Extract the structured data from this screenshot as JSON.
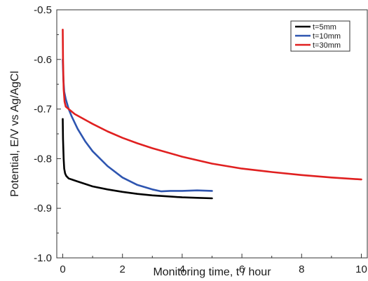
{
  "chart_data": {
    "type": "line",
    "title": "",
    "xlabel": "Monitoring time, t / hour",
    "ylabel": "Potential, E/V vs Ag/AgCl",
    "xlim": [
      -0.2,
      10.2
    ],
    "ylim": [
      -1.0,
      -0.5
    ],
    "x_ticks": [
      0,
      2,
      4,
      6,
      8,
      10
    ],
    "x_tick_labels": [
      "0",
      "2",
      "4",
      "6",
      "8",
      "10"
    ],
    "y_ticks": [
      -1.0,
      -0.9,
      -0.8,
      -0.7,
      -0.6,
      -0.5
    ],
    "y_tick_labels": [
      "-1.0",
      "-0.9",
      "-0.8",
      "-0.7",
      "-0.6",
      "-0.5"
    ],
    "grid": false,
    "legend_position": "top-right",
    "series": [
      {
        "name": "t=5mm",
        "color": "#000000",
        "x": [
          0.0,
          0.01,
          0.03,
          0.05,
          0.08,
          0.12,
          0.2,
          0.3,
          0.5,
          0.75,
          1.0,
          1.5,
          2.0,
          2.5,
          3.0,
          3.5,
          4.0,
          4.5,
          5.0
        ],
        "y": [
          -0.72,
          -0.76,
          -0.8,
          -0.82,
          -0.83,
          -0.835,
          -0.84,
          -0.842,
          -0.846,
          -0.851,
          -0.856,
          -0.862,
          -0.867,
          -0.871,
          -0.874,
          -0.876,
          -0.878,
          -0.879,
          -0.88
        ]
      },
      {
        "name": "t=10mm",
        "color": "#2e55b0",
        "x": [
          0.0,
          0.02,
          0.05,
          0.1,
          0.15,
          0.2,
          0.3,
          0.5,
          0.75,
          1.0,
          1.5,
          2.0,
          2.5,
          3.0,
          3.3,
          3.6,
          4.0,
          4.5,
          5.0
        ],
        "y": [
          -0.6,
          -0.64,
          -0.665,
          -0.68,
          -0.69,
          -0.7,
          -0.715,
          -0.74,
          -0.765,
          -0.785,
          -0.815,
          -0.838,
          -0.853,
          -0.862,
          -0.866,
          -0.865,
          -0.865,
          -0.864,
          -0.865
        ]
      },
      {
        "name": "t=30mm",
        "color": "#e02020",
        "x": [
          0.0,
          0.01,
          0.03,
          0.06,
          0.1,
          0.2,
          0.4,
          0.7,
          1.0,
          1.5,
          2.0,
          2.5,
          3.0,
          4.0,
          5.0,
          6.0,
          7.0,
          8.0,
          9.0,
          10.0
        ],
        "y": [
          -0.54,
          -0.6,
          -0.66,
          -0.685,
          -0.695,
          -0.7,
          -0.71,
          -0.72,
          -0.73,
          -0.745,
          -0.758,
          -0.769,
          -0.779,
          -0.796,
          -0.81,
          -0.82,
          -0.827,
          -0.833,
          -0.838,
          -0.842
        ]
      }
    ]
  }
}
